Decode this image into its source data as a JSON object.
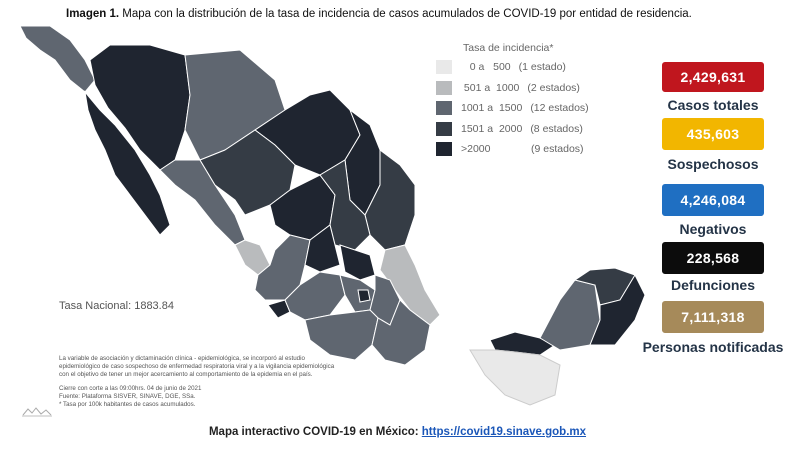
{
  "caption": {
    "prefix": "Imagen 1.",
    "text": "Mapa con la distribución de la tasa de incidencia de casos acumulados de COVID-19 por entidad de residencia."
  },
  "legend": {
    "title": "Tasa de incidencia*",
    "items": [
      {
        "range": "   0 a   500",
        "count": "(1 estado)",
        "color": "#e9e9e9"
      },
      {
        "range": " 501 a  1000",
        "count": "(2 estados)",
        "color": "#b9bbbd"
      },
      {
        "range": "1001 a  1500",
        "count": "(12 estados)",
        "color": "#5f6670"
      },
      {
        "range": "1501 a  2000",
        "count": "(8 estados)",
        "color": "#353c45"
      },
      {
        "range": ">2000",
        "count": "(9 estados)",
        "color": "#1f2530"
      }
    ]
  },
  "stats": [
    {
      "value": "2,429,631",
      "label": "Casos totales",
      "color": "#c0161e"
    },
    {
      "value": "435,603",
      "label": "Sospechosos",
      "color": "#f2b600"
    },
    {
      "value": "4,246,084",
      "label": "Negativos",
      "color": "#1f6fc2"
    },
    {
      "value": "228,568",
      "label": "Defunciones",
      "color": "#0c0c0c"
    },
    {
      "value": "7,111,318",
      "label": "Personas notificadas",
      "color": "#a68a5a"
    }
  ],
  "tasa_nacional": "Tasa Nacional: 1883.84",
  "notes": {
    "line1": "La variable de asociación y dictaminación clínica - epidemiológica, se incorporó al estudio",
    "line2": "epidemiológico de caso sospechoso de enfermedad respiratoria viral y a la vigilancia epidemiológica",
    "line3": "con el objetivo de tener un mejor acercamiento al comportamiento de la epidemia en el país.",
    "line4": "Cierre con corte a las 09:00hrs. 04 de junio de 2021",
    "line5": "Fuente: Plataforma SISVER, SINAVE, DGE, SSa.",
    "line6": "* Tasa por 100k habitantes de casos acumulados."
  },
  "footer": {
    "text": "Mapa interactivo COVID-19 en México: ",
    "link": "https://covid19.sinave.gob.mx"
  }
}
